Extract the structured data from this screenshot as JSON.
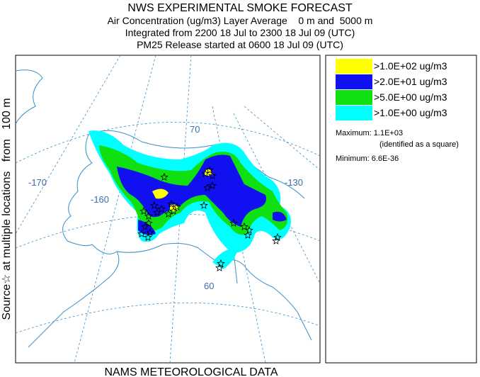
{
  "header": {
    "title": "NWS EXPERIMENTAL SMOKE FORECAST",
    "lines": [
      "Air Concentration (ug/m3) Layer Average    0 m and  5000 m",
      "Integrated from 2200 18 Jul to 2300 18 Jul 09 (UTC)",
      "PM25 Release started at 0600 18 Jul 09 (UTC)"
    ]
  },
  "source_label": "Source☆ at multiple locations   from   100 m",
  "footer": "NAMS METEOROLOGICAL DATA",
  "map": {
    "labels": [
      "70",
      "-170",
      "-160",
      "-130",
      "60"
    ]
  },
  "legend": {
    "entries": [
      {
        "label": ">1.0E+02 ug/m3",
        "color": "#ffff00"
      },
      {
        "label": ">2.0E+01 ug/m3",
        "color": "#1010f0"
      },
      {
        "label": ">5.0E+00 ug/m3",
        "color": "#10e010"
      },
      {
        "label": ">1.0E+00 ug/m3",
        "color": "#00ffff"
      }
    ],
    "maximum": "Maximum: 1.1E+03",
    "note": "(identified as a square)",
    "minimum": "Minimum: 6.6E-36"
  }
}
